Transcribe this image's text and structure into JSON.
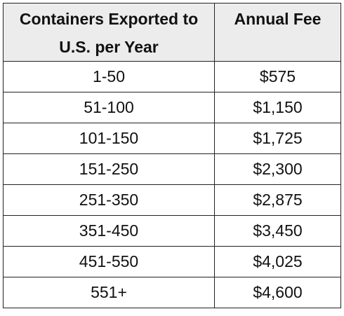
{
  "table": {
    "headers": [
      "Containers Exported to U.S. per Year",
      "Annual Fee"
    ],
    "rows": [
      {
        "containers": "1-50",
        "fee": "$575"
      },
      {
        "containers": "51-100",
        "fee": "$1,150"
      },
      {
        "containers": "101-150",
        "fee": "$1,725"
      },
      {
        "containers": "151-250",
        "fee": "$2,300"
      },
      {
        "containers": "251-350",
        "fee": "$2,875"
      },
      {
        "containers": "351-450",
        "fee": "$3,450"
      },
      {
        "containers": "451-550",
        "fee": "$4,025"
      },
      {
        "containers": "551+",
        "fee": "$4,600"
      }
    ]
  },
  "colors": {
    "header_background": "#ececec",
    "border": "#222222",
    "text": "#111111"
  }
}
